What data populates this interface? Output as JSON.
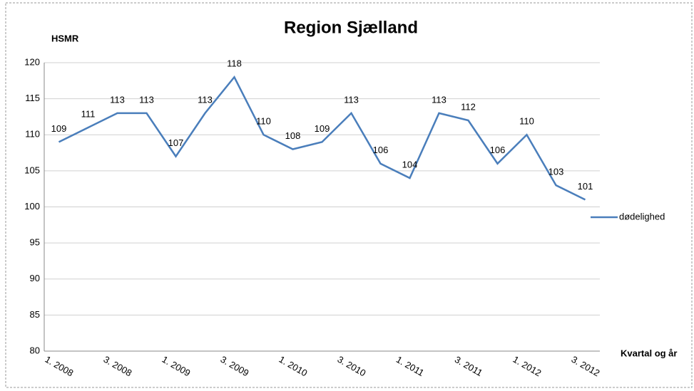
{
  "chart_data": {
    "type": "line",
    "title": "Region Sjælland",
    "y_label": "HSMR",
    "x_label": "Kvartal og år",
    "categories": [
      "1. 2008",
      null,
      "3. 2008",
      null,
      "1. 2009",
      null,
      "3. 2009",
      null,
      "1. 2010",
      null,
      "3. 2010",
      null,
      "1. 2011",
      null,
      "3. 2011",
      null,
      "1. 2012",
      null,
      "3. 2012"
    ],
    "series": [
      {
        "name": "dødelighed",
        "color": "#4a7ebb",
        "values": [
          109,
          111,
          113,
          113,
          107,
          113,
          118,
          110,
          108,
          109,
          113,
          106,
          104,
          113,
          112,
          106,
          110,
          103,
          101
        ]
      }
    ],
    "ylim": [
      80,
      120
    ],
    "yticks": [
      80,
      85,
      90,
      95,
      100,
      105,
      110,
      115,
      120
    ],
    "grid": true,
    "legend": "right"
  }
}
